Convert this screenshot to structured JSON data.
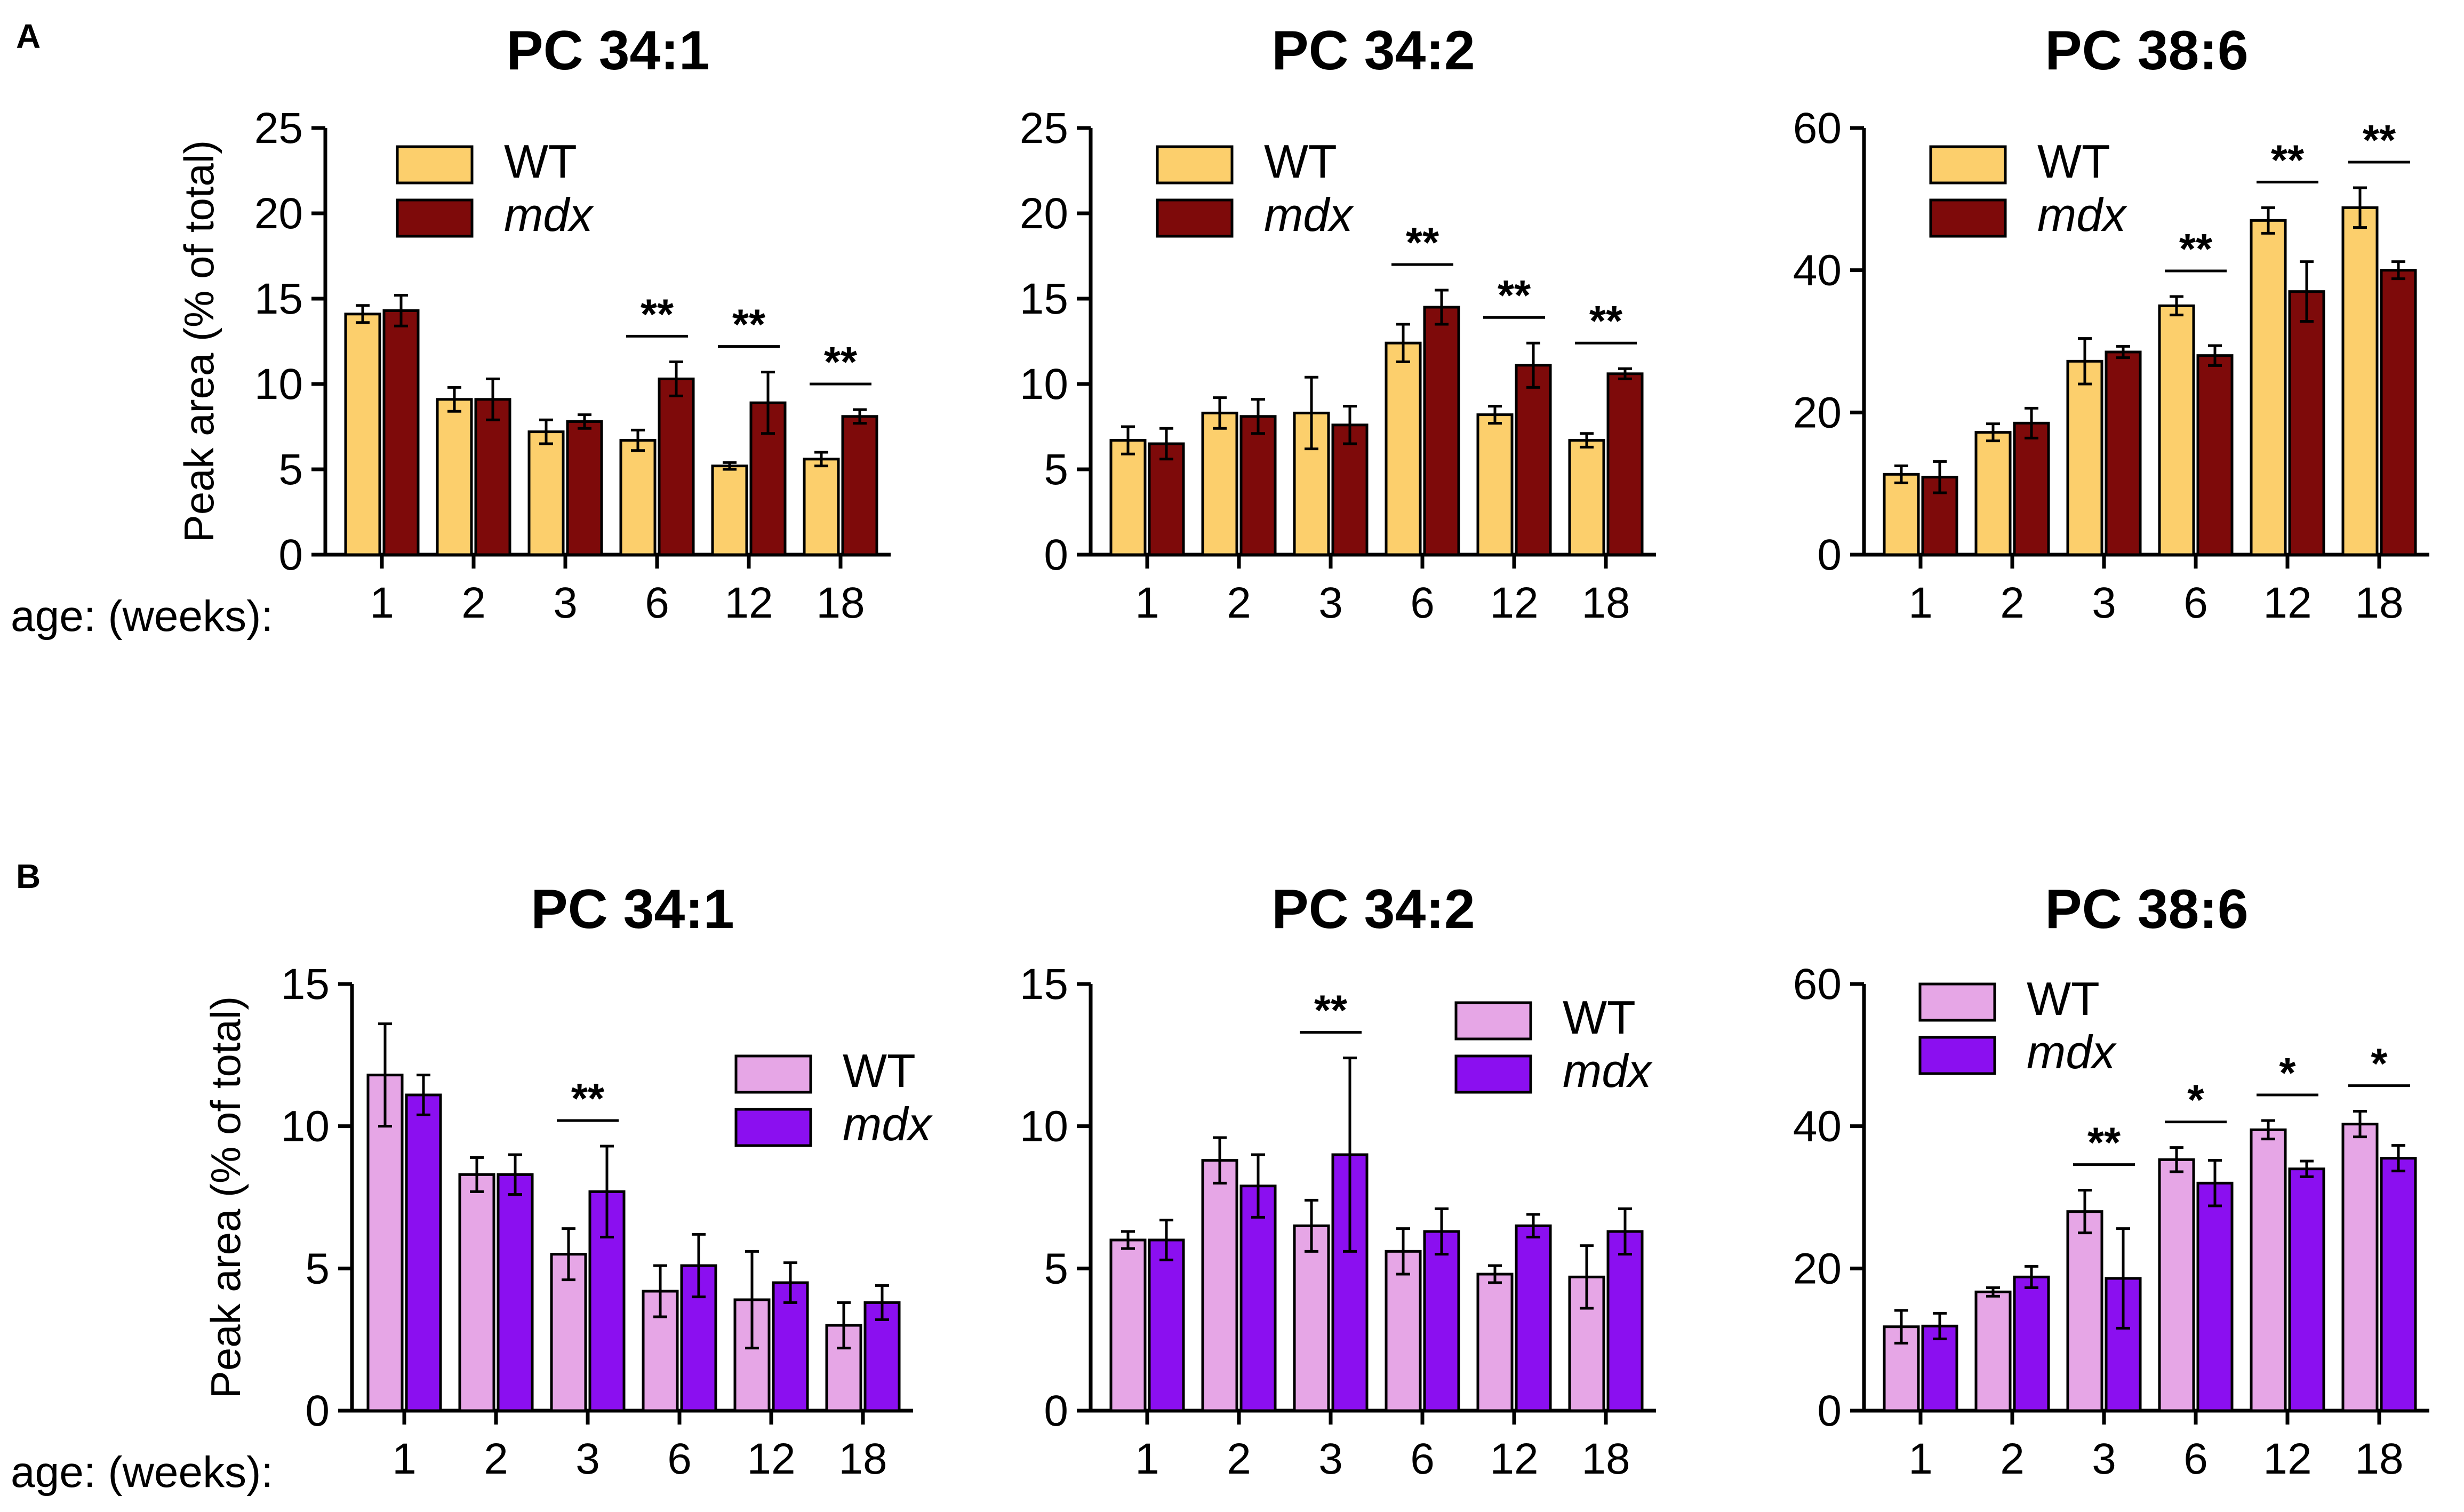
{
  "figure": {
    "panel_labels": [
      "A",
      "B"
    ],
    "x_prefix": "age: (weeks):"
  },
  "chart_data": [
    {
      "type": "bar",
      "panel": "A",
      "title": "PC 34:1",
      "categories": [
        "1",
        "2",
        "3",
        "6",
        "12",
        "18"
      ],
      "xlabel": "age: (weeks):",
      "ylabel": "Peak area (% of total)",
      "ylim": [
        0,
        25
      ],
      "yticks": [
        "0",
        "5",
        "10",
        "15",
        "20",
        "25"
      ],
      "colors": [
        "#FCCF6C",
        "#7E0A0A"
      ],
      "legend": "top-left",
      "series": [
        {
          "name": "WT",
          "values": [
            14.1,
            9.1,
            7.2,
            6.7,
            5.2,
            5.6
          ],
          "errors": [
            0.5,
            0.7,
            0.7,
            0.6,
            0.2,
            0.4
          ]
        },
        {
          "name": "mdx",
          "values": [
            14.3,
            9.1,
            7.8,
            10.3,
            8.9,
            8.1
          ],
          "errors": [
            0.9,
            1.2,
            0.4,
            1.0,
            1.8,
            0.4
          ]
        }
      ],
      "significance": [
        {
          "category": "6",
          "label": "**"
        },
        {
          "category": "12",
          "label": "**"
        },
        {
          "category": "18",
          "label": "**"
        }
      ]
    },
    {
      "type": "bar",
      "panel": "A",
      "title": "PC 34:2",
      "categories": [
        "1",
        "2",
        "3",
        "6",
        "12",
        "18"
      ],
      "xlabel": "",
      "ylabel": "",
      "ylim": [
        0,
        25
      ],
      "yticks": [
        "0",
        "5",
        "10",
        "15",
        "20",
        "25"
      ],
      "colors": [
        "#FCCF6C",
        "#7E0A0A"
      ],
      "legend": "top-left",
      "series": [
        {
          "name": "WT",
          "values": [
            6.7,
            8.3,
            8.3,
            12.4,
            8.2,
            6.7
          ],
          "errors": [
            0.8,
            0.9,
            2.1,
            1.1,
            0.5,
            0.4
          ]
        },
        {
          "name": "mdx",
          "values": [
            6.5,
            8.1,
            7.6,
            14.5,
            11.1,
            10.6
          ],
          "errors": [
            0.9,
            1.0,
            1.1,
            1.0,
            1.3,
            0.3
          ]
        }
      ],
      "significance": [
        {
          "category": "6",
          "label": "**"
        },
        {
          "category": "12",
          "label": "**"
        },
        {
          "category": "18",
          "label": "**"
        }
      ]
    },
    {
      "type": "bar",
      "panel": "A",
      "title": "PC 38:6",
      "categories": [
        "1",
        "2",
        "3",
        "6",
        "12",
        "18"
      ],
      "xlabel": "",
      "ylabel": "",
      "ylim": [
        0,
        60
      ],
      "yticks": [
        "0",
        "20",
        "40",
        "60"
      ],
      "colors": [
        "#FCCF6C",
        "#7E0A0A"
      ],
      "legend": "top-left",
      "series": [
        {
          "name": "WT",
          "values": [
            11.3,
            17.2,
            27.2,
            35.0,
            47.0,
            48.8
          ],
          "errors": [
            1.2,
            1.2,
            3.2,
            1.3,
            1.8,
            2.8
          ]
        },
        {
          "name": "mdx",
          "values": [
            10.9,
            18.5,
            28.5,
            28.0,
            37.0,
            40.0
          ],
          "errors": [
            2.2,
            2.1,
            0.8,
            1.4,
            4.2,
            1.2
          ]
        }
      ],
      "significance": [
        {
          "category": "6",
          "label": "**"
        },
        {
          "category": "12",
          "label": "**"
        },
        {
          "category": "18",
          "label": "**"
        }
      ]
    },
    {
      "type": "bar",
      "panel": "B",
      "title": "PC 34:1",
      "categories": [
        "1",
        "2",
        "3",
        "6",
        "12",
        "18"
      ],
      "xlabel": "age: (weeks):",
      "ylabel": "Peak area (% of total)",
      "ylim": [
        0,
        15
      ],
      "yticks": [
        "0",
        "5",
        "10",
        "15"
      ],
      "colors": [
        "#E6A6E6",
        "#8B0FF0"
      ],
      "legend": "right",
      "series": [
        {
          "name": "WT",
          "values": [
            11.8,
            8.3,
            5.5,
            4.2,
            3.9,
            3.0
          ],
          "errors": [
            1.8,
            0.6,
            0.9,
            0.9,
            1.7,
            0.8
          ]
        },
        {
          "name": "mdx",
          "values": [
            11.1,
            8.3,
            7.7,
            5.1,
            4.5,
            3.8
          ],
          "errors": [
            0.7,
            0.7,
            1.6,
            1.1,
            0.7,
            0.6
          ]
        }
      ],
      "significance": [
        {
          "category": "3",
          "label": "**"
        }
      ]
    },
    {
      "type": "bar",
      "panel": "B",
      "title": "PC 34:2",
      "categories": [
        "1",
        "2",
        "3",
        "6",
        "12",
        "18"
      ],
      "xlabel": "",
      "ylabel": "",
      "ylim": [
        0,
        15
      ],
      "yticks": [
        "0",
        "5",
        "10",
        "15"
      ],
      "colors": [
        "#E6A6E6",
        "#8B0FF0"
      ],
      "legend": "top-right",
      "series": [
        {
          "name": "WT",
          "values": [
            6.0,
            8.8,
            6.5,
            5.6,
            4.8,
            4.7
          ],
          "errors": [
            0.3,
            0.8,
            0.9,
            0.8,
            0.3,
            1.1
          ]
        },
        {
          "name": "mdx",
          "values": [
            6.0,
            7.9,
            9.0,
            6.3,
            6.5,
            6.3
          ],
          "errors": [
            0.7,
            1.1,
            3.4,
            0.8,
            0.4,
            0.8
          ]
        }
      ],
      "significance": [
        {
          "category": "3",
          "label": "**"
        }
      ]
    },
    {
      "type": "bar",
      "panel": "B",
      "title": "PC 38:6",
      "categories": [
        "1",
        "2",
        "3",
        "6",
        "12",
        "18"
      ],
      "xlabel": "",
      "ylabel": "",
      "ylim": [
        0,
        60
      ],
      "yticks": [
        "0",
        "20",
        "40",
        "60"
      ],
      "colors": [
        "#E6A6E6",
        "#8B0FF0"
      ],
      "legend": "top-left",
      "series": [
        {
          "name": "WT",
          "values": [
            11.8,
            16.7,
            28.0,
            35.3,
            39.5,
            40.3
          ],
          "errors": [
            2.3,
            0.6,
            3.0,
            1.7,
            1.3,
            1.8
          ]
        },
        {
          "name": "mdx",
          "values": [
            11.9,
            18.8,
            18.6,
            32.0,
            34.0,
            35.5
          ],
          "errors": [
            1.8,
            1.5,
            7.0,
            3.2,
            1.1,
            1.8
          ]
        }
      ],
      "significance": [
        {
          "category": "3",
          "label": "**"
        },
        {
          "category": "6",
          "label": "*"
        },
        {
          "category": "12",
          "label": "*"
        },
        {
          "category": "18",
          "label": "*"
        }
      ]
    }
  ]
}
